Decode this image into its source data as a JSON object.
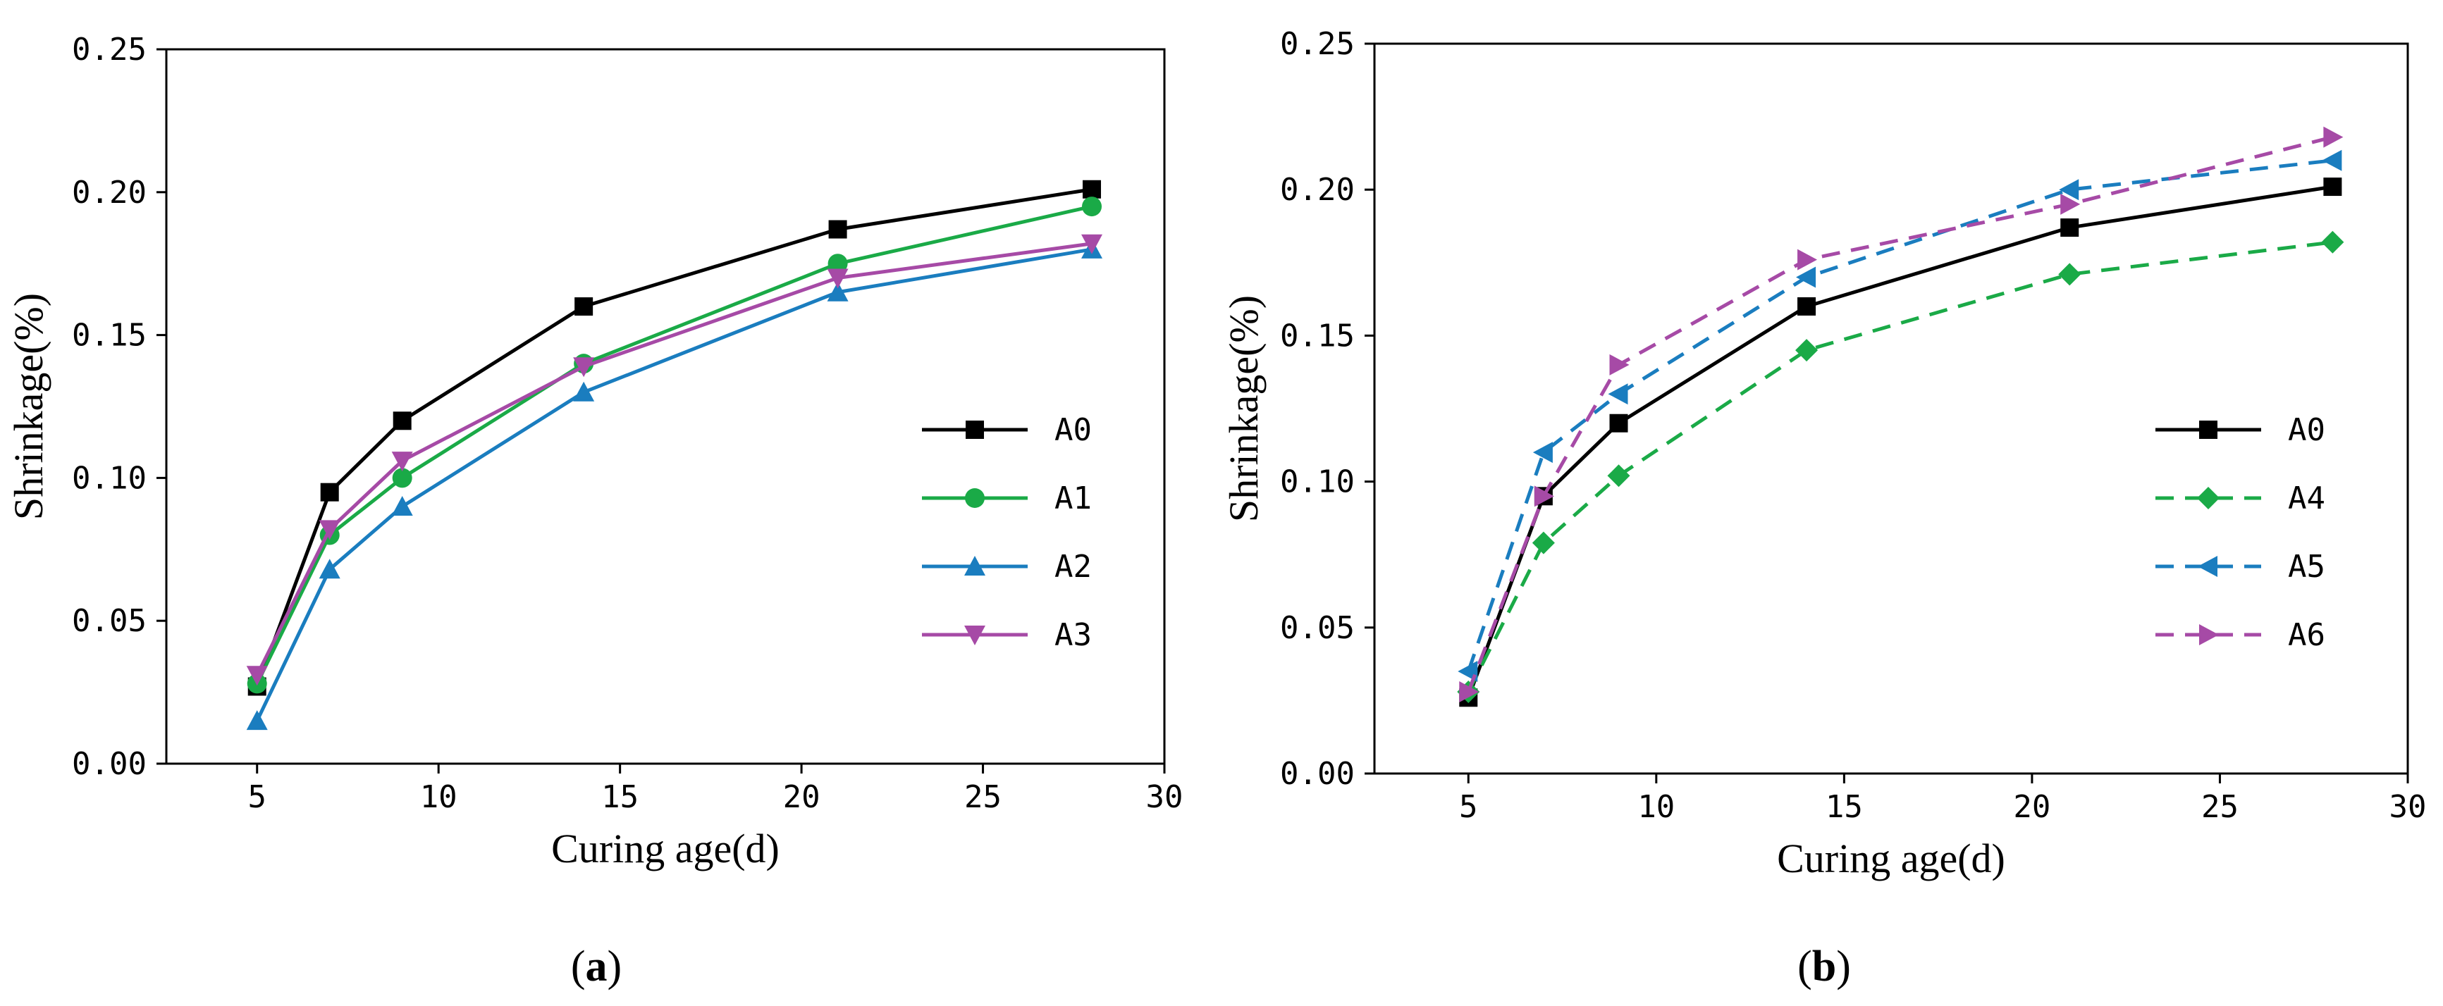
{
  "chart_data": [
    {
      "type": "line",
      "panel_label": "a",
      "xlabel": "Curing age(d)",
      "ylabel": "Shrinkage(%)",
      "xlim": [
        2.5,
        30
      ],
      "ylim": [
        0,
        0.25
      ],
      "x_ticks": [
        5,
        10,
        15,
        20,
        25,
        30
      ],
      "y_ticks": [
        "0.00",
        "0.05",
        "0.10",
        "0.15",
        "0.20",
        "0.25"
      ],
      "grid": false,
      "legend_position": "right",
      "series": [
        {
          "name": "A0",
          "color": "#000000",
          "marker": "square",
          "dash": "solid",
          "x": [
            5,
            7,
            9,
            14,
            21,
            28
          ],
          "y": [
            0.027,
            0.095,
            0.12,
            0.16,
            0.187,
            0.201
          ]
        },
        {
          "name": "A1",
          "color": "#1aaa47",
          "marker": "circle",
          "dash": "solid",
          "x": [
            5,
            7,
            9,
            14,
            21,
            28
          ],
          "y": [
            0.028,
            0.08,
            0.1,
            0.14,
            0.175,
            0.195
          ]
        },
        {
          "name": "A2",
          "color": "#1a7dbf",
          "marker": "triangle-up",
          "dash": "solid",
          "x": [
            5,
            7,
            9,
            14,
            21,
            28
          ],
          "y": [
            0.015,
            0.068,
            0.09,
            0.13,
            0.165,
            0.18
          ]
        },
        {
          "name": "A3",
          "color": "#a64aa6",
          "marker": "triangle-down",
          "dash": "solid",
          "x": [
            5,
            7,
            9,
            14,
            21,
            28
          ],
          "y": [
            0.031,
            0.082,
            0.106,
            0.139,
            0.17,
            0.182
          ]
        }
      ]
    },
    {
      "type": "line",
      "panel_label": "b",
      "xlabel": "Curing age(d)",
      "ylabel": "Shrinkage(%)",
      "xlim": [
        2.5,
        30
      ],
      "ylim": [
        0,
        0.25
      ],
      "x_ticks": [
        5,
        10,
        15,
        20,
        25,
        30
      ],
      "y_ticks": [
        "0.00",
        "0.05",
        "0.10",
        "0.15",
        "0.20",
        "0.25"
      ],
      "grid": false,
      "legend_position": "right",
      "series": [
        {
          "name": "A0",
          "color": "#000000",
          "marker": "square",
          "dash": "solid",
          "x": [
            5,
            7,
            9,
            14,
            21,
            28
          ],
          "y": [
            0.026,
            0.095,
            0.12,
            0.16,
            0.187,
            0.201
          ]
        },
        {
          "name": "A4",
          "color": "#1aaa47",
          "marker": "diamond",
          "dash": "dashed",
          "x": [
            5,
            7,
            9,
            14,
            21,
            28
          ],
          "y": [
            0.028,
            0.079,
            0.102,
            0.145,
            0.171,
            0.182
          ]
        },
        {
          "name": "A5",
          "color": "#1a7dbf",
          "marker": "triangle-left",
          "dash": "dashed",
          "x": [
            5,
            7,
            9,
            14,
            21,
            28
          ],
          "y": [
            0.035,
            0.11,
            0.13,
            0.17,
            0.2,
            0.21
          ]
        },
        {
          "name": "A6",
          "color": "#a64aa6",
          "marker": "triangle-right",
          "dash": "dashed",
          "x": [
            5,
            7,
            9,
            14,
            21,
            28
          ],
          "y": [
            0.028,
            0.095,
            0.14,
            0.176,
            0.195,
            0.218
          ]
        }
      ]
    }
  ]
}
